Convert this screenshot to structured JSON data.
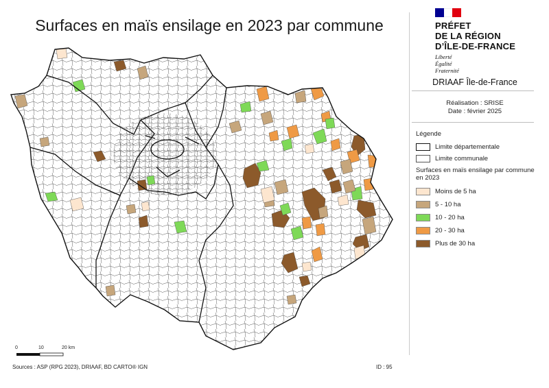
{
  "title": "Surfaces en maïs ensilage en 2023 par commune",
  "logo": {
    "lines": [
      "PRÉFET",
      "DE LA RÉGION",
      "D’ÎLE-DE-FRANCE"
    ],
    "motto": [
      "Liberté",
      "Égalité",
      "Fraternité"
    ],
    "flag_colors": [
      "#000091",
      "#ffffff",
      "#e1000f"
    ]
  },
  "organisation": "DRIAAF Île-de-France",
  "realisation": "Réalisation : SRISE",
  "date": "Date : février 2025",
  "legend": {
    "title": "Légende",
    "boundary_dept": "Limite départementale",
    "boundary_commune": "Limite communale",
    "subtitle": "Surfaces en maïs ensilage par commune en 2023",
    "classes": [
      {
        "label": "Moins de 5 ha",
        "color": "#fde6cf"
      },
      {
        "label": "5 - 10 ha",
        "color": "#c6a67c"
      },
      {
        "label": "10 - 20 ha",
        "color": "#7ed957"
      },
      {
        "label": "20 - 30 ha",
        "color": "#ef9a45"
      },
      {
        "label": "Plus de 30 ha",
        "color": "#8c5a2b"
      }
    ]
  },
  "scale": {
    "ticks": [
      "0",
      "10",
      "20 km"
    ]
  },
  "sources": "Sources : ASP (RPG 2023), DRIAAF, BD CARTO® IGN",
  "id": "ID : 95"
}
